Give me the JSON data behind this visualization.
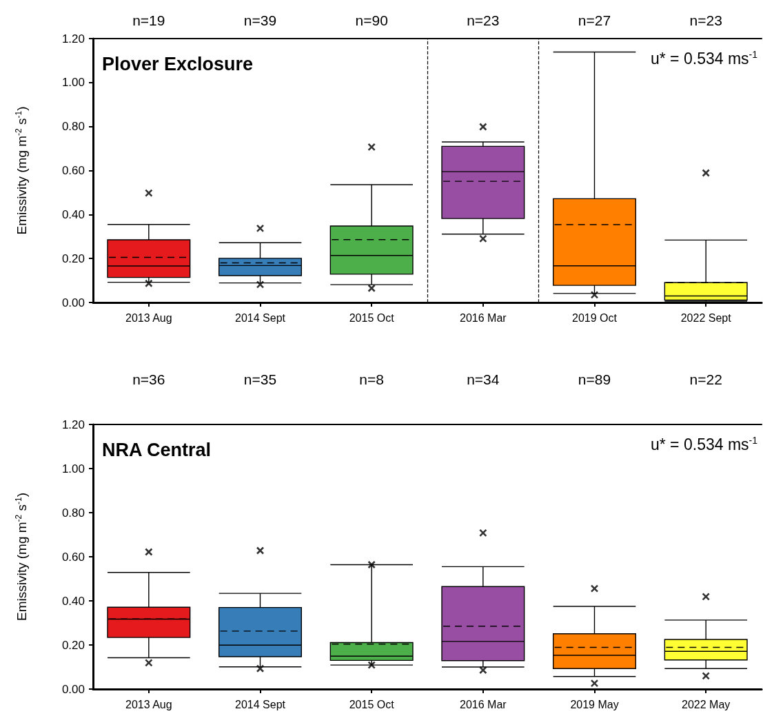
{
  "chart_data": [
    {
      "type": "box",
      "title": "Plover Exclosure",
      "ylabel": "Emissivity (mg m$^{-2}$ s$^{-1}$)",
      "categories": [
        "2013 Aug",
        "2014 Sept",
        "2015 Oct",
        "2016 Mar",
        "2019 Oct",
        "2022 Sept"
      ],
      "colors": [
        "#e41a1c",
        "#377eb8",
        "#4daf4a",
        "#984ea3",
        "#ff7f00",
        "#ffff33"
      ],
      "boxes": [
        {
          "low": 0.092,
          "q1": 0.114,
          "median": 0.166,
          "q3": 0.285,
          "high": 0.355,
          "mean": 0.205,
          "outliers": [
            0.498,
            0.087
          ]
        },
        {
          "low": 0.089,
          "q1": 0.122,
          "median": 0.168,
          "q3": 0.201,
          "high": 0.272,
          "mean": 0.18,
          "outliers": [
            0.337,
            0.082
          ]
        },
        {
          "low": 0.081,
          "q1": 0.129,
          "median": 0.214,
          "q3": 0.348,
          "high": 0.536,
          "mean": 0.286,
          "outliers": [
            0.707,
            0.065
          ]
        },
        {
          "low": 0.311,
          "q1": 0.382,
          "median": 0.595,
          "q3": 0.71,
          "high": 0.73,
          "mean": 0.551,
          "outliers": [
            0.799,
            0.29
          ]
        },
        {
          "low": 0.041,
          "q1": 0.078,
          "median": 0.167,
          "q3": 0.472,
          "high": 1.139,
          "mean": 0.354,
          "outliers": [
            0.035
          ]
        },
        {
          "low": 0.006,
          "q1": 0.011,
          "median": 0.03,
          "q3": 0.091,
          "high": 0.284,
          "mean": 0.09,
          "outliers": [
            0.589
          ]
        }
      ],
      "ylim": [
        0,
        1.2
      ],
      "yticks": [
        {
          "value": 0,
          "label": "0.00"
        },
        {
          "value": 0.2,
          "label": "0.20"
        },
        {
          "value": 0.4,
          "label": "0.40"
        },
        {
          "value": 0.6,
          "label": "0.60"
        },
        {
          "value": 0.8,
          "label": "0.80"
        },
        {
          "value": 1.0,
          "label": "1.00"
        },
        {
          "value": 1.2,
          "label": "1.20"
        }
      ],
      "annotations": [
        "n=19",
        "n=39",
        "n=90",
        "n=23",
        "n=27",
        "n=23",
        "u* = 0.534 ms$^{-1}$"
      ],
      "marker": "cross"
    },
    {
      "type": "box",
      "title": "NRA Central",
      "ylabel": "Emissivity (mg m$^{-2}$ s$^{-1}$)",
      "categories": [
        "2013 Aug",
        "2014 Sept",
        "2015 Oct",
        "2016 Mar",
        "2019 May",
        "2022 May"
      ],
      "colors": [
        "#e41a1c",
        "#377eb8",
        "#4daf4a",
        "#984ea3",
        "#ff7f00",
        "#ffff33"
      ],
      "boxes": [
        {
          "low": 0.142,
          "q1": 0.234,
          "median": 0.317,
          "q3": 0.371,
          "high": 0.529,
          "mean": 0.318,
          "outliers": [
            0.622,
            0.119
          ]
        },
        {
          "low": 0.101,
          "q1": 0.147,
          "median": 0.199,
          "q3": 0.37,
          "high": 0.434,
          "mean": 0.263,
          "outliers": [
            0.628,
            0.093
          ]
        },
        {
          "low": 0.109,
          "q1": 0.13,
          "median": 0.149,
          "q3": 0.211,
          "high": 0.564,
          "mean": 0.204,
          "outliers": [
            0.564,
            0.109
          ]
        },
        {
          "low": 0.1,
          "q1": 0.129,
          "median": 0.216,
          "q3": 0.465,
          "high": 0.555,
          "mean": 0.285,
          "outliers": [
            0.708,
            0.086
          ]
        },
        {
          "low": 0.057,
          "q1": 0.093,
          "median": 0.153,
          "q3": 0.251,
          "high": 0.375,
          "mean": 0.189,
          "outliers": [
            0.456,
            0.026
          ]
        },
        {
          "low": 0.093,
          "q1": 0.132,
          "median": 0.171,
          "q3": 0.225,
          "high": 0.313,
          "mean": 0.189,
          "outliers": [
            0.419,
            0.06
          ]
        }
      ],
      "ylim": [
        0,
        1.2
      ],
      "yticks": [
        {
          "value": 0,
          "label": "0.00"
        },
        {
          "value": 0.2,
          "label": "0.20"
        },
        {
          "value": 0.4,
          "label": "0.40"
        },
        {
          "value": 0.6,
          "label": "0.60"
        },
        {
          "value": 0.8,
          "label": "0.80"
        },
        {
          "value": 1.0,
          "label": "1.00"
        },
        {
          "value": 1.2,
          "label": "1.20"
        }
      ],
      "annotations": [
        "n=36",
        "n=35",
        "n=8",
        "n=34",
        "n=89",
        "n=22",
        "u* = 0.534 ms$^{-1}$"
      ],
      "marker": "cross"
    }
  ]
}
